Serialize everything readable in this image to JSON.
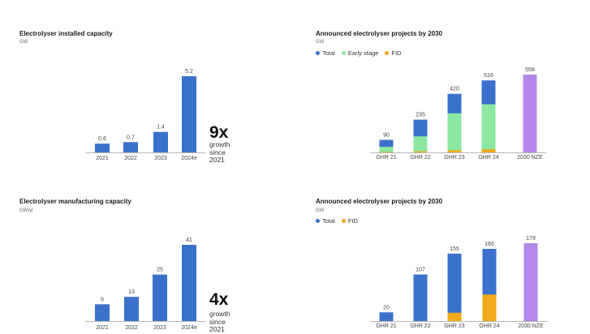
{
  "colors": {
    "total": "#3a71cc",
    "early": "#8be8a0",
    "fid": "#f0a81c",
    "nze": "#b488ea",
    "axis": "#9e9e9e",
    "text": "#444444"
  },
  "chart_data": [
    {
      "type": "bar",
      "title": "Electrolyser installed capacity",
      "unit": "GW",
      "categories": [
        "2021",
        "2022",
        "2023",
        "2024e"
      ],
      "values": [
        0.6,
        0.7,
        1.4,
        5.2
      ],
      "value_labels": [
        "0.6",
        "0.7",
        "1.4",
        "5.2"
      ],
      "ylim": [
        0,
        5.2
      ],
      "callout": {
        "big": "9x",
        "line1": "growth",
        "line2": "since 2021"
      }
    },
    {
      "type": "bar",
      "title": "Announced electrolyser projects by 2030",
      "unit": "GW",
      "legend": [
        "Total",
        "Early stage",
        "FID"
      ],
      "categories": [
        "GHR 21",
        "GHR 22",
        "GHR 23",
        "GHR 24",
        "2030 NZE"
      ],
      "series": [
        {
          "name": "Total",
          "values": [
            90,
            235,
            420,
            516,
            558
          ]
        },
        {
          "name": "Early stage",
          "values": [
            40,
            115,
            280,
            345,
            0
          ]
        },
        {
          "name": "FID",
          "values": [
            4,
            8,
            15,
            22,
            0
          ]
        }
      ],
      "value_labels": [
        "90",
        "235",
        "420",
        "516",
        "558"
      ],
      "ylim": [
        0,
        558
      ]
    },
    {
      "type": "bar",
      "title": "Electrolyser manufacturing capacity",
      "unit": "GW/yr",
      "categories": [
        "2021",
        "2022",
        "2023",
        "2024e"
      ],
      "values": [
        9,
        13,
        25,
        41
      ],
      "value_labels": [
        "9",
        "13",
        "25",
        "41"
      ],
      "ylim": [
        0,
        41
      ],
      "callout": {
        "big": "4x",
        "line1": "growth",
        "line2": "since 2021"
      }
    },
    {
      "type": "bar",
      "title": "Announced electrolyser projects by 2030",
      "unit": "GW",
      "legend": [
        "Total",
        "FID"
      ],
      "categories": [
        "GHR 21",
        "GHR 22",
        "GHR 23",
        "GHR 24",
        "2030 NZE"
      ],
      "series": [
        {
          "name": "Total",
          "values": [
            20,
            107,
            155,
            166,
            179
          ]
        },
        {
          "name": "FID",
          "values": [
            0,
            0,
            19,
            61,
            0
          ]
        }
      ],
      "value_labels": [
        "20",
        "107",
        "155",
        "166",
        "179"
      ],
      "ylim": [
        0,
        179
      ]
    }
  ]
}
